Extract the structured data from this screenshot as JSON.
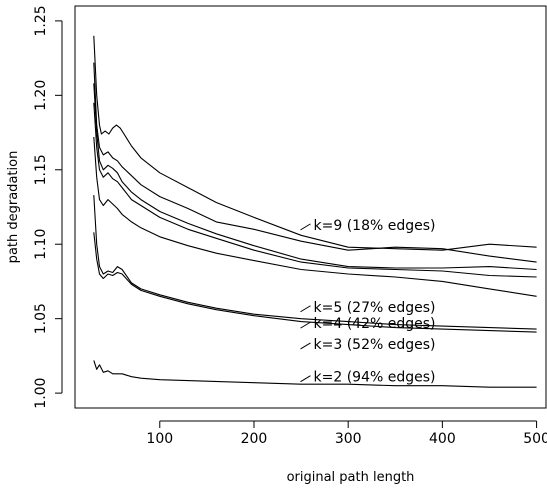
{
  "chart_data": {
    "type": "line",
    "xlabel": "original path length",
    "ylabel": "path degradation",
    "xlim": [
      10,
      510
    ],
    "ylim": [
      0.99,
      1.26
    ],
    "x_ticks": [
      100,
      200,
      300,
      400,
      500
    ],
    "y_ticks": [
      1.0,
      1.05,
      1.1,
      1.15,
      1.2,
      1.25
    ],
    "x_tick_labels": [
      "100",
      "200",
      "300",
      "400",
      "500"
    ],
    "y_tick_labels": [
      "1.00",
      "1.05",
      "1.10",
      "1.15",
      "1.20",
      "1.25"
    ],
    "grid": false,
    "series": [
      {
        "x": [
          30,
          33,
          36,
          38,
          42,
          46,
          50,
          54,
          58,
          62,
          70,
          80,
          100,
          130,
          160,
          200,
          250,
          300,
          350,
          400,
          450,
          500
        ],
        "y": [
          1.24,
          1.2,
          1.18,
          1.174,
          1.176,
          1.174,
          1.178,
          1.18,
          1.178,
          1.174,
          1.166,
          1.158,
          1.148,
          1.138,
          1.128,
          1.118,
          1.106,
          1.098,
          1.097,
          1.096,
          1.1,
          1.098
        ]
      },
      {
        "x": [
          30,
          33,
          36,
          40,
          45,
          50,
          55,
          60,
          70,
          80,
          100,
          130,
          160,
          200,
          250,
          300,
          350,
          400,
          450,
          500
        ],
        "y": [
          1.222,
          1.18,
          1.165,
          1.16,
          1.162,
          1.158,
          1.156,
          1.152,
          1.146,
          1.14,
          1.132,
          1.124,
          1.115,
          1.11,
          1.102,
          1.096,
          1.098,
          1.097,
          1.092,
          1.088
        ]
      },
      {
        "x": [
          30,
          33,
          36,
          40,
          45,
          50,
          55,
          60,
          70,
          80,
          100,
          130,
          160,
          200,
          250,
          300,
          350,
          400,
          450,
          500
        ],
        "y": [
          1.208,
          1.175,
          1.156,
          1.15,
          1.153,
          1.151,
          1.148,
          1.142,
          1.135,
          1.13,
          1.122,
          1.114,
          1.107,
          1.099,
          1.09,
          1.085,
          1.084,
          1.084,
          1.085,
          1.083
        ]
      },
      {
        "x": [
          30,
          33,
          36,
          40,
          45,
          50,
          55,
          60,
          70,
          80,
          100,
          130,
          160,
          200,
          250,
          300,
          350,
          400,
          450,
          500
        ],
        "y": [
          1.195,
          1.165,
          1.15,
          1.145,
          1.148,
          1.144,
          1.142,
          1.138,
          1.13,
          1.126,
          1.118,
          1.11,
          1.104,
          1.096,
          1.088,
          1.084,
          1.083,
          1.082,
          1.079,
          1.078
        ]
      },
      {
        "x": [
          30,
          33,
          36,
          40,
          45,
          50,
          55,
          60,
          70,
          80,
          100,
          130,
          160,
          200,
          250,
          300,
          350,
          400,
          450,
          500
        ],
        "y": [
          1.172,
          1.145,
          1.13,
          1.126,
          1.13,
          1.127,
          1.124,
          1.12,
          1.115,
          1.111,
          1.105,
          1.099,
          1.094,
          1.089,
          1.083,
          1.08,
          1.078,
          1.075,
          1.07,
          1.065
        ]
      },
      {
        "x": [
          30,
          33,
          36,
          40,
          45,
          50,
          55,
          60,
          70,
          80,
          100,
          130,
          160,
          200,
          250,
          300,
          350,
          400,
          450,
          500
        ],
        "y": [
          1.133,
          1.1,
          1.085,
          1.08,
          1.082,
          1.081,
          1.085,
          1.083,
          1.074,
          1.07,
          1.066,
          1.061,
          1.057,
          1.053,
          1.05,
          1.048,
          1.046,
          1.045,
          1.044,
          1.043
        ]
      },
      {
        "x": [
          30,
          33,
          36,
          40,
          45,
          50,
          55,
          60,
          70,
          80,
          100,
          130,
          160,
          200,
          250,
          300,
          350,
          400,
          450,
          500
        ],
        "y": [
          1.108,
          1.09,
          1.08,
          1.077,
          1.08,
          1.079,
          1.081,
          1.08,
          1.073,
          1.069,
          1.065,
          1.06,
          1.056,
          1.052,
          1.048,
          1.046,
          1.044,
          1.043,
          1.042,
          1.041
        ]
      },
      {
        "x": [
          30,
          33,
          36,
          40,
          45,
          50,
          60,
          70,
          80,
          100,
          150,
          200,
          250,
          300,
          350,
          400,
          450,
          500
        ],
        "y": [
          1.022,
          1.016,
          1.019,
          1.014,
          1.015,
          1.013,
          1.013,
          1.011,
          1.01,
          1.009,
          1.008,
          1.007,
          1.006,
          1.006,
          1.005,
          1.005,
          1.004,
          1.004
        ]
      }
    ],
    "annotations": [
      {
        "text": "k=9 (18% edges)",
        "x": 260,
        "y": 1.113
      },
      {
        "text": "k=5 (27% edges)",
        "x": 260,
        "y": 1.058
      },
      {
        "text": "k=4 (42% edges)",
        "x": 260,
        "y": 1.047
      },
      {
        "text": "k=3 (52% edges)",
        "x": 260,
        "y": 1.033
      },
      {
        "text": "k=2 (94% edges)",
        "x": 260,
        "y": 1.011
      }
    ]
  }
}
